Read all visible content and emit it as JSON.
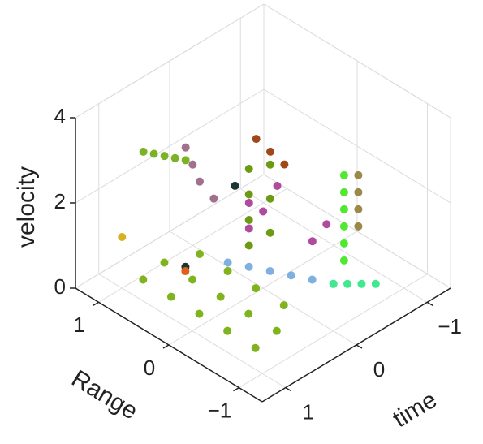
{
  "chart_data": {
    "type": "scatter3d",
    "xlabel": "time",
    "ylabel": "Range",
    "zlabel": "velocity",
    "xlim": [
      -1.33,
      1.33
    ],
    "ylim": [
      -1.33,
      1.33
    ],
    "zlim": [
      0,
      4
    ],
    "xticks": [
      {
        "value": -1,
        "label": "−1"
      },
      0,
      1
    ],
    "yticks": [
      {
        "value": -1,
        "label": "−1"
      },
      0,
      1
    ],
    "zticks": [
      0,
      2,
      4
    ],
    "grid": true,
    "series": [
      {
        "color": "#7fb41e",
        "x": [
          0.9,
          0.9,
          0.9,
          0.9,
          0.9,
          0.6,
          0.6,
          0.6,
          0.6,
          0.6,
          0.3,
          0.3,
          0.3,
          0.3
        ],
        "y": [
          0.8,
          0.4,
          0,
          -0.4,
          -0.8,
          0.8,
          0.4,
          0,
          -0.4,
          -0.8,
          0.6,
          0.2,
          -0.2,
          -0.6
        ],
        "z": [
          0.3,
          0.3,
          0.3,
          0.3,
          0.3,
          0.4,
          0.4,
          0.4,
          0.4,
          0.4,
          0.5,
          0.5,
          0.5,
          0.5
        ]
      },
      {
        "color": "#80b0e0",
        "x": [
          0.2,
          0.1,
          0,
          -0.1,
          -0.2,
          -0.3
        ],
        "y": [
          0.3,
          0.1,
          -0.1,
          -0.3,
          -0.5,
          -0.7
        ],
        "z": [
          0.5,
          0.5,
          0.5,
          0.5,
          0.5,
          0.5
        ]
      },
      {
        "color": "#7cb226",
        "x": [
          0.5,
          0.45,
          0.4,
          0.35,
          0.3
        ],
        "y": [
          1.2,
          1.1,
          1.0,
          0.9,
          0.8
        ],
        "z": [
          2.5,
          2.5,
          2.5,
          2.5,
          2.5
        ]
      },
      {
        "color": "#b04a9c",
        "x": [
          -0.1,
          -0.1,
          -0.2,
          -0.3,
          -0.5,
          -0.6
        ],
        "y": [
          0.3,
          0.3,
          0.2,
          0.1,
          -0.2,
          -0.3
        ],
        "z": [
          1.0,
          1.6,
          1.4,
          2.0,
          0.8,
          1.2
        ]
      },
      {
        "color": "#50e830",
        "x": [
          -0.6,
          -0.6,
          -0.6,
          -0.6,
          -0.6,
          -0.6
        ],
        "y": [
          -0.55,
          -0.55,
          -0.55,
          -0.55,
          -0.55,
          -0.55
        ],
        "z": [
          0.6,
          1.0,
          1.4,
          1.8,
          2.2,
          2.6
        ]
      },
      {
        "color": "#a0481a",
        "x": [
          -0.4,
          -0.5,
          -0.6
        ],
        "y": [
          0.5,
          0.4,
          0.3
        ],
        "z": [
          2.6,
          2.3,
          2.0
        ]
      },
      {
        "color": "#a0708c",
        "x": [
          0.3,
          0.25,
          0.2,
          0.1
        ],
        "y": [
          0.8,
          0.75,
          0.7,
          0.6
        ],
        "z": [
          2.8,
          2.4,
          2.0,
          1.6
        ]
      },
      {
        "color": "#9a8a48",
        "x": [
          -0.9,
          -0.9,
          -0.9,
          -0.9
        ],
        "y": [
          -0.45,
          -0.45,
          -0.45,
          -0.45
        ],
        "z": [
          1.0,
          1.4,
          1.8,
          2.2
        ]
      },
      {
        "color": "#40e890",
        "x": [
          -0.3,
          -0.4,
          -0.5,
          -0.6
        ],
        "y": [
          -0.7,
          -0.8,
          -0.9,
          -1.0
        ],
        "z": [
          0.5,
          0.5,
          0.5,
          0.5
        ]
      },
      {
        "color": "#1c3434",
        "x": [
          0.6,
          -0.1
        ],
        "y": [
          0.5,
          0.5
        ],
        "z": [
          0.6,
          1.8
        ]
      },
      {
        "color": "#6c9a10",
        "x": [
          0,
          0,
          0,
          0,
          -0.2,
          -0.2,
          -0.2
        ],
        "y": [
          0.2,
          0.2,
          0.2,
          0.2,
          0.1,
          0.1,
          0.1
        ],
        "z": [
          0.8,
          1.4,
          2.0,
          2.6,
          1.0,
          1.8,
          2.6
        ]
      },
      {
        "color": "#e0601a",
        "x": [
          0.7
        ],
        "y": [
          0.4
        ],
        "z": [
          0.7
        ]
      },
      {
        "color": "#d8b020",
        "x": [
          1.0
        ],
        "y": [
          1.0
        ],
        "z": [
          1.2
        ]
      }
    ]
  }
}
